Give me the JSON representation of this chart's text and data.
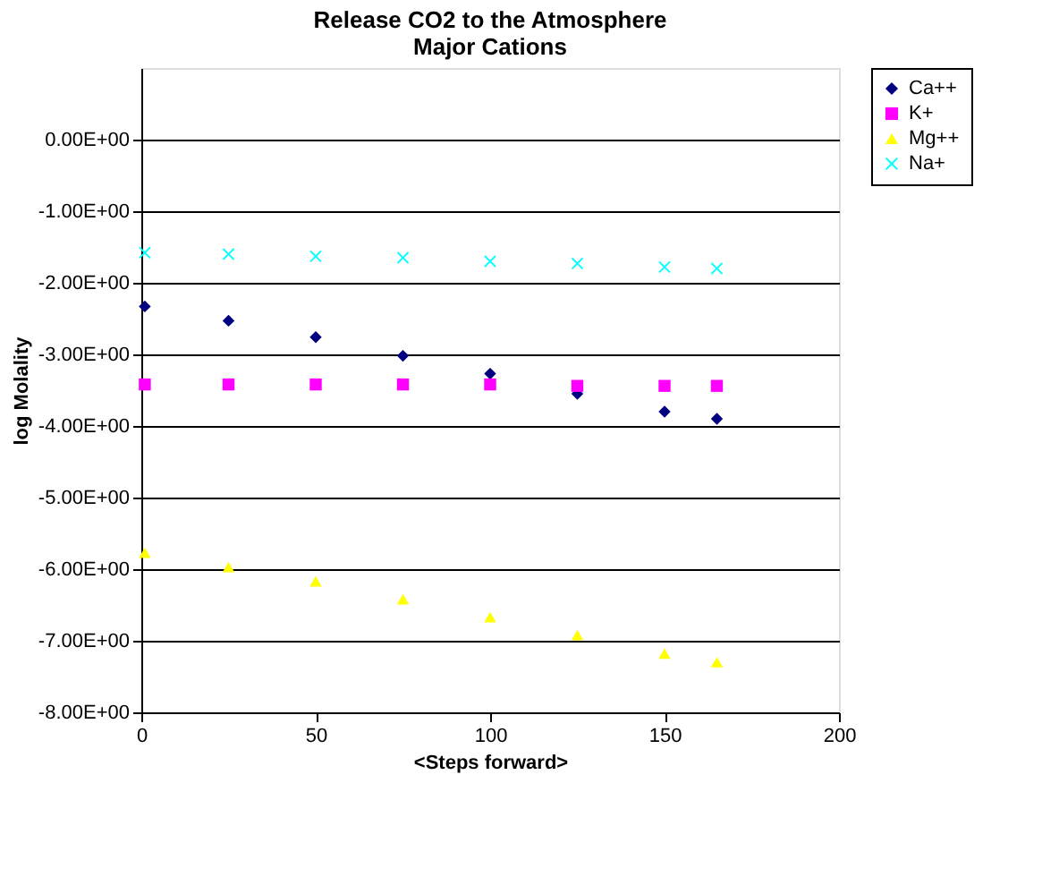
{
  "chart_data": {
    "type": "scatter",
    "title": [
      "Release CO2 to the Atmosphere",
      "Major Cations"
    ],
    "xlabel": "<Steps forward>",
    "ylabel": "log Molality",
    "x": [
      1,
      25,
      50,
      75,
      100,
      125,
      150,
      165
    ],
    "series": [
      {
        "name": "Ca++",
        "color": "#000080",
        "marker": "diamond",
        "values": [
          -2.33,
          -2.53,
          -2.76,
          -3.02,
          -3.27,
          -3.55,
          -3.8,
          -3.9
        ]
      },
      {
        "name": "K+",
        "color": "#ff00ff",
        "marker": "square",
        "values": [
          -3.42,
          -3.42,
          -3.42,
          -3.42,
          -3.42,
          -3.44,
          -3.44,
          -3.44
        ]
      },
      {
        "name": "Mg++",
        "color": "#ffff00",
        "marker": "triangle",
        "values": [
          -5.77,
          -5.97,
          -6.17,
          -6.42,
          -6.67,
          -6.92,
          -7.18,
          -7.3
        ]
      },
      {
        "name": "Na+",
        "color": "#00ffff",
        "marker": "cross",
        "values": [
          -1.58,
          -1.6,
          -1.63,
          -1.65,
          -1.7,
          -1.73,
          -1.78,
          -1.8
        ]
      }
    ],
    "xlim": [
      0,
      200
    ],
    "xticks": [
      0,
      50,
      100,
      150,
      200
    ],
    "ylim": [
      -8,
      1
    ],
    "yticks": [
      {
        "value": 0,
        "label": "0.00E+00"
      },
      {
        "value": -1,
        "label": "-1.00E+00"
      },
      {
        "value": -2,
        "label": "-2.00E+00"
      },
      {
        "value": -3,
        "label": "-3.00E+00"
      },
      {
        "value": -4,
        "label": "-4.00E+00"
      },
      {
        "value": -5,
        "label": "-5.00E+00"
      },
      {
        "value": -6,
        "label": "-6.00E+00"
      },
      {
        "value": -7,
        "label": "-7.00E+00"
      },
      {
        "value": -8,
        "label": "-8.00E+00"
      }
    ],
    "grid": "y",
    "legend": "right"
  }
}
